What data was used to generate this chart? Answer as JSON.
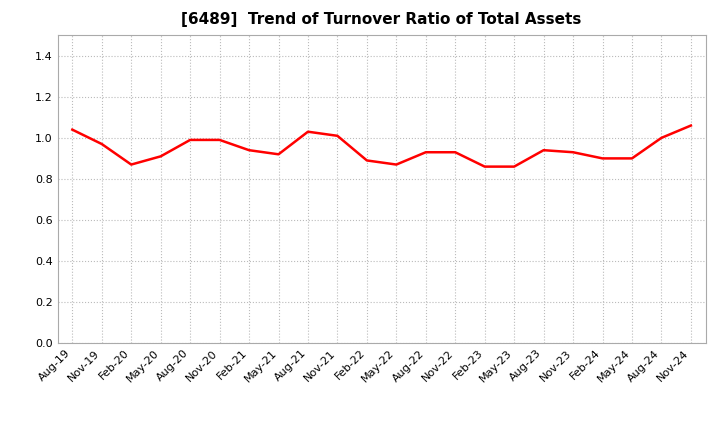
{
  "title": "[6489]  Trend of Turnover Ratio of Total Assets",
  "x_labels": [
    "Aug-19",
    "Nov-19",
    "Feb-20",
    "May-20",
    "Aug-20",
    "Nov-20",
    "Feb-21",
    "May-21",
    "Aug-21",
    "Nov-21",
    "Feb-22",
    "May-22",
    "Aug-22",
    "Nov-22",
    "Feb-23",
    "May-23",
    "Aug-23",
    "Nov-23",
    "Feb-24",
    "May-24",
    "Aug-24",
    "Nov-24"
  ],
  "y_values": [
    1.04,
    0.97,
    0.87,
    0.91,
    0.99,
    0.99,
    0.94,
    0.92,
    1.03,
    1.01,
    0.89,
    0.87,
    0.93,
    0.93,
    0.86,
    0.86,
    0.94,
    0.93,
    0.9,
    0.9,
    1.0,
    1.06
  ],
  "line_color": "#ff0000",
  "line_width": 1.8,
  "ylim": [
    0.0,
    1.5
  ],
  "yticks": [
    0.0,
    0.2,
    0.4,
    0.6,
    0.8,
    1.0,
    1.2,
    1.4
  ],
  "background_color": "#ffffff",
  "plot_bg_color": "#ffffff",
  "grid_color": "#bbbbbb",
  "title_fontsize": 11,
  "tick_fontsize": 8
}
